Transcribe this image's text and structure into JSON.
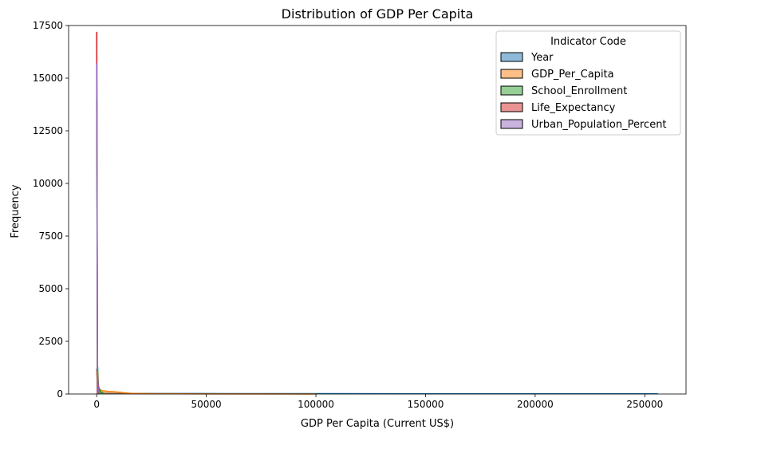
{
  "chart_data": {
    "type": "histogram",
    "title": "Distribution of GDP Per Capita",
    "xlabel": "GDP Per Capita (Current US$)",
    "ylabel": "Frequency",
    "xlim": [
      -12800,
      268800
    ],
    "ylim": [
      0,
      17500
    ],
    "x_ticks": [
      0,
      50000,
      100000,
      150000,
      200000,
      250000
    ],
    "x_tick_labels": [
      "0",
      "50000",
      "100000",
      "150000",
      "200000",
      "250000"
    ],
    "y_ticks": [
      0,
      2500,
      5000,
      7500,
      10000,
      12500,
      15000,
      17500
    ],
    "y_tick_labels": [
      "0",
      "2500",
      "5000",
      "7500",
      "10000",
      "12500",
      "15000",
      "17500"
    ],
    "legend": {
      "title": "Indicator Code",
      "position": "top-right"
    },
    "bin_width": 400,
    "series": [
      {
        "name": "Year",
        "color": "#1f77b4",
        "hist": [
          [
            0,
            1200
          ],
          [
            400,
            300
          ],
          [
            800,
            150
          ],
          [
            1200,
            100
          ],
          [
            2000,
            60
          ],
          [
            3000,
            40
          ],
          [
            5000,
            35
          ],
          [
            10000,
            30
          ],
          [
            30000,
            25
          ],
          [
            60000,
            20
          ],
          [
            100000,
            18
          ],
          [
            150000,
            15
          ],
          [
            200000,
            15
          ],
          [
            256000,
            12
          ]
        ]
      },
      {
        "name": "GDP_Per_Capita",
        "color": "#ff7f0e",
        "hist": [
          [
            0,
            1100
          ],
          [
            400,
            420
          ],
          [
            800,
            300
          ],
          [
            1200,
            250
          ],
          [
            2000,
            180
          ],
          [
            3000,
            150
          ],
          [
            5000,
            130
          ],
          [
            8000,
            110
          ],
          [
            12000,
            60
          ],
          [
            16000,
            30
          ],
          [
            25000,
            15
          ],
          [
            40000,
            8
          ],
          [
            60000,
            4
          ],
          [
            100000,
            2
          ]
        ]
      },
      {
        "name": "School_Enrollment",
        "color": "#2ca02c",
        "hist": [
          [
            0,
            14000
          ],
          [
            400,
            1300
          ],
          [
            800,
            400
          ],
          [
            1200,
            250
          ],
          [
            1600,
            150
          ],
          [
            2000,
            100
          ],
          [
            3000,
            50
          ]
        ]
      },
      {
        "name": "Life_Expectancy",
        "color": "#d62728",
        "hist": [
          [
            0,
            17200
          ],
          [
            400,
            900
          ],
          [
            800,
            300
          ],
          [
            1200,
            100
          ]
        ]
      },
      {
        "name": "Urban_Population_Percent",
        "color": "#9467bd",
        "hist": [
          [
            0,
            15700
          ],
          [
            400,
            700
          ],
          [
            800,
            200
          ],
          [
            1200,
            80
          ]
        ]
      }
    ]
  }
}
